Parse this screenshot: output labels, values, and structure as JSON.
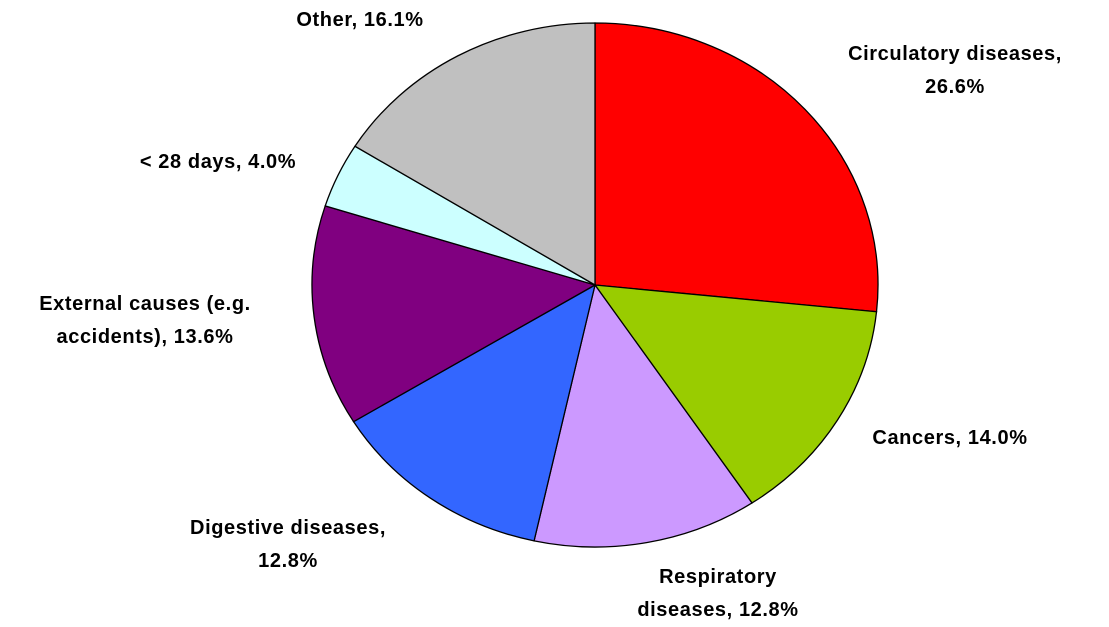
{
  "chart_data": {
    "type": "pie",
    "categories": [
      "Circulatory diseases",
      "Cancers",
      "Respiratory diseases",
      "Digestive diseases",
      "External causes (e.g. accidents)",
      "< 28 days",
      "Other"
    ],
    "values": [
      26.6,
      14.0,
      12.8,
      12.8,
      13.6,
      4.0,
      16.1
    ],
    "value_labels": [
      "Circulatory diseases,\n26.6%",
      "Cancers, 14.0%",
      "Respiratory\ndiseases, 12.8%",
      "Digestive diseases,\n12.8%",
      "External causes (e.g.\naccidents), 13.6%",
      "< 28 days, 4.0%",
      "Other, 16.1%"
    ],
    "colors": [
      "#ff0000",
      "#99cc00",
      "#cc99ff",
      "#3366ff",
      "#800080",
      "#ccffff",
      "#c0c0c0"
    ]
  }
}
